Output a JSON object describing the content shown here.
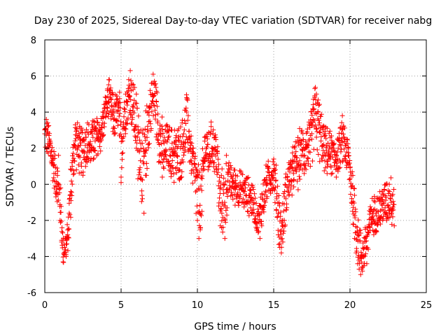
{
  "chart_data": {
    "type": "scatter",
    "title": "Day 230 of 2025, Sidereal Day-to-day VTEC variation (SDTVAR) for receiver nabg",
    "xlabel": "GPS time / hours",
    "ylabel": "SDTVAR / TECUs",
    "xlim": [
      0,
      25
    ],
    "ylim": [
      -6,
      8
    ],
    "xticks": [
      0,
      5,
      10,
      15,
      20,
      25
    ],
    "yticks": [
      -6,
      -4,
      -2,
      0,
      2,
      4,
      6,
      8
    ],
    "grid": true,
    "marker": "+",
    "color": "#ff0000",
    "series": [
      {
        "name": "SDTVAR",
        "points": [
          [
            0.0,
            2.8
          ],
          [
            0.1,
            3.6
          ],
          [
            0.2,
            3.2
          ],
          [
            0.3,
            2.5
          ],
          [
            0.4,
            1.8
          ],
          [
            0.5,
            1.2
          ],
          [
            0.6,
            0.6
          ],
          [
            0.7,
            -0.5
          ],
          [
            0.8,
            0.9
          ],
          [
            0.9,
            1.6
          ],
          [
            1.0,
            -2.0
          ],
          [
            1.1,
            -3.2
          ],
          [
            1.2,
            -4.3
          ],
          [
            1.3,
            -3.5
          ],
          [
            1.4,
            -4.0
          ],
          [
            1.5,
            -2.8
          ],
          [
            1.6,
            -1.6
          ],
          [
            1.7,
            -0.4
          ],
          [
            1.8,
            1.0
          ],
          [
            1.9,
            2.2
          ],
          [
            2.0,
            3.3
          ],
          [
            2.1,
            3.0
          ],
          [
            2.2,
            2.1
          ],
          [
            2.3,
            1.5
          ],
          [
            2.4,
            1.0
          ],
          [
            2.5,
            0.5
          ],
          [
            2.6,
            1.8
          ],
          [
            2.7,
            2.6
          ],
          [
            2.8,
            3.4
          ],
          [
            2.9,
            2.2
          ],
          [
            3.0,
            1.3
          ],
          [
            3.1,
            2.8
          ],
          [
            3.2,
            3.5
          ],
          [
            3.3,
            2.4
          ],
          [
            3.4,
            1.6
          ],
          [
            3.5,
            2.6
          ],
          [
            3.6,
            3.0
          ],
          [
            3.7,
            2.5
          ],
          [
            3.8,
            3.4
          ],
          [
            3.9,
            4.2
          ],
          [
            4.0,
            4.6
          ],
          [
            4.1,
            5.2
          ],
          [
            4.2,
            5.8
          ],
          [
            4.3,
            5.0
          ],
          [
            4.4,
            4.3
          ],
          [
            4.5,
            3.6
          ],
          [
            4.6,
            2.8
          ],
          [
            4.7,
            3.5
          ],
          [
            4.8,
            4.5
          ],
          [
            4.9,
            5.1
          ],
          [
            5.0,
            0.1
          ],
          [
            5.1,
            2.4
          ],
          [
            5.2,
            4.2
          ],
          [
            5.3,
            5.0
          ],
          [
            5.4,
            4.6
          ],
          [
            5.5,
            5.8
          ],
          [
            5.6,
            6.3
          ],
          [
            5.7,
            5.5
          ],
          [
            5.8,
            4.4
          ],
          [
            5.9,
            3.2
          ],
          [
            6.0,
            2.0
          ],
          [
            6.1,
            0.3
          ],
          [
            6.2,
            1.8
          ],
          [
            6.3,
            3.0
          ],
          [
            6.4,
            -0.8
          ],
          [
            6.5,
            -1.6
          ],
          [
            6.6,
            0.5
          ],
          [
            6.7,
            2.6
          ],
          [
            6.8,
            4.0
          ],
          [
            6.9,
            5.2
          ],
          [
            7.0,
            5.6
          ],
          [
            7.1,
            6.1
          ],
          [
            7.2,
            5.5
          ],
          [
            7.3,
            4.6
          ],
          [
            7.4,
            3.5
          ],
          [
            7.5,
            2.2
          ],
          [
            7.6,
            1.2
          ],
          [
            7.7,
            0.4
          ],
          [
            7.8,
            1.4
          ],
          [
            7.9,
            2.4
          ],
          [
            8.0,
            3.3
          ],
          [
            8.1,
            2.6
          ],
          [
            8.2,
            1.6
          ],
          [
            8.3,
            0.6
          ],
          [
            8.4,
            1.8
          ],
          [
            8.5,
            3.0
          ],
          [
            8.6,
            2.4
          ],
          [
            8.7,
            1.2
          ],
          [
            8.8,
            0.3
          ],
          [
            8.9,
            2.0
          ],
          [
            9.0,
            3.4
          ],
          [
            9.1,
            2.8
          ],
          [
            9.2,
            1.9
          ],
          [
            9.3,
            4.8
          ],
          [
            9.4,
            3.8
          ],
          [
            9.5,
            2.5
          ],
          [
            9.6,
            1.3
          ],
          [
            9.7,
            2.0
          ],
          [
            9.8,
            1.1
          ],
          [
            9.9,
            0.4
          ],
          [
            10.0,
            -2.0
          ],
          [
            10.1,
            -3.0
          ],
          [
            10.2,
            -2.4
          ],
          [
            10.3,
            -1.5
          ],
          [
            10.5,
            2.6
          ],
          [
            10.6,
            1.6
          ],
          [
            10.7,
            0.8
          ],
          [
            10.8,
            1.7
          ],
          [
            10.9,
            3.2
          ],
          [
            11.0,
            2.0
          ],
          [
            11.1,
            1.2
          ],
          [
            11.2,
            2.6
          ],
          [
            11.3,
            1.8
          ],
          [
            11.4,
            -1.2
          ],
          [
            11.5,
            -2.3
          ],
          [
            11.6,
            -1.6
          ],
          [
            11.7,
            -0.3
          ],
          [
            11.8,
            -3.0
          ],
          [
            11.9,
            1.6
          ],
          [
            12.0,
            0.2
          ],
          [
            12.5,
            0.5
          ],
          [
            13.0,
            -1.0
          ],
          [
            13.1,
            0.0
          ],
          [
            13.5,
            -0.5
          ],
          [
            13.6,
            -1.6
          ],
          [
            13.8,
            -1.9
          ],
          [
            14.0,
            -2.6
          ],
          [
            14.1,
            -3.0
          ],
          [
            14.2,
            -2.2
          ],
          [
            14.3,
            -1.4
          ],
          [
            14.4,
            -0.6
          ],
          [
            14.5,
            0.2
          ],
          [
            14.6,
            1.0
          ],
          [
            14.7,
            0.5
          ],
          [
            14.8,
            -0.5
          ],
          [
            14.9,
            0.5
          ],
          [
            15.0,
            1.4
          ],
          [
            15.1,
            0.6
          ],
          [
            15.2,
            -0.8
          ],
          [
            15.3,
            -2.8
          ],
          [
            15.4,
            -3.5
          ],
          [
            15.5,
            -3.8
          ],
          [
            15.6,
            -3.2
          ],
          [
            15.7,
            -2.0
          ],
          [
            15.8,
            -0.8
          ],
          [
            15.9,
            0.4
          ],
          [
            16.0,
            1.2
          ],
          [
            16.1,
            0.2
          ],
          [
            16.2,
            -0.6
          ],
          [
            16.3,
            0.6
          ],
          [
            16.4,
            1.6
          ],
          [
            16.5,
            0.9
          ],
          [
            16.6,
            -0.3
          ],
          [
            16.7,
            1.3
          ],
          [
            16.8,
            2.4
          ],
          [
            16.9,
            1.6
          ],
          [
            17.0,
            0.6
          ],
          [
            17.1,
            2.0
          ],
          [
            17.2,
            2.9
          ],
          [
            17.3,
            1.8
          ],
          [
            17.4,
            1.0
          ],
          [
            17.5,
            2.5
          ],
          [
            17.6,
            3.6
          ],
          [
            17.7,
            5.3
          ],
          [
            17.8,
            5.0
          ],
          [
            17.9,
            4.0
          ],
          [
            18.0,
            3.4
          ],
          [
            18.1,
            2.4
          ],
          [
            18.2,
            1.6
          ],
          [
            18.3,
            2.8
          ],
          [
            18.4,
            1.6
          ],
          [
            18.5,
            0.6
          ],
          [
            18.6,
            1.8
          ],
          [
            18.7,
            2.6
          ],
          [
            18.8,
            1.8
          ],
          [
            18.9,
            2.2
          ],
          [
            19.0,
            1.2
          ],
          [
            19.1,
            0.4
          ],
          [
            19.2,
            1.4
          ],
          [
            19.3,
            2.4
          ],
          [
            19.4,
            1.8
          ],
          [
            19.5,
            3.8
          ],
          [
            19.6,
            2.6
          ],
          [
            19.7,
            1.6
          ],
          [
            19.8,
            2.5
          ],
          [
            19.9,
            2.0
          ],
          [
            20.0,
            0.3
          ],
          [
            20.1,
            -1.0
          ],
          [
            20.2,
            -2.2
          ],
          [
            20.3,
            -3.0
          ],
          [
            20.4,
            -3.8
          ],
          [
            20.5,
            -4.4
          ],
          [
            20.6,
            -4.7
          ],
          [
            20.7,
            -5.0
          ],
          [
            20.8,
            -4.6
          ],
          [
            20.9,
            -4.0
          ],
          [
            21.0,
            -3.0
          ],
          [
            21.1,
            -4.4
          ],
          [
            21.2,
            -3.6
          ],
          [
            21.3,
            -2.4
          ],
          [
            21.4,
            -1.4
          ],
          [
            21.5,
            -2.0
          ],
          [
            21.6,
            -2.6
          ],
          [
            21.7,
            -1.6
          ],
          [
            21.8,
            -0.8
          ],
          [
            21.9,
            -1.8
          ],
          [
            22.0,
            -2.2
          ],
          [
            22.1,
            -1.4
          ],
          [
            22.2,
            -0.6
          ],
          [
            22.3,
            -1.3
          ],
          [
            22.4,
            -2.0
          ],
          [
            22.5,
            -1.2
          ],
          [
            22.6,
            -0.4
          ],
          [
            22.7,
            -1.0
          ],
          [
            22.8,
            -1.8
          ],
          [
            22.9,
            -2.3
          ]
        ],
        "envelope": [
          [
            0.0,
            3.8,
            1.8
          ],
          [
            0.3,
            3.6,
            0.8
          ],
          [
            0.7,
            1.8,
            -0.8
          ],
          [
            1.0,
            0.8,
            -2.4
          ],
          [
            1.2,
            -2.6,
            -4.6
          ],
          [
            1.5,
            -2.0,
            -4.2
          ],
          [
            1.7,
            1.6,
            -2.2
          ],
          [
            2.0,
            4.0,
            0.8
          ],
          [
            2.3,
            3.4,
            0.2
          ],
          [
            2.6,
            3.8,
            0.6
          ],
          [
            3.0,
            3.6,
            0.8
          ],
          [
            3.3,
            4.0,
            1.0
          ],
          [
            3.7,
            4.2,
            1.6
          ],
          [
            4.0,
            5.2,
            3.2
          ],
          [
            4.2,
            5.9,
            3.4
          ],
          [
            4.5,
            5.2,
            2.2
          ],
          [
            4.8,
            5.4,
            2.6
          ],
          [
            5.0,
            4.8,
            -0.2
          ],
          [
            5.3,
            5.6,
            2.8
          ],
          [
            5.6,
            6.6,
            3.4
          ],
          [
            5.9,
            6.0,
            1.6
          ],
          [
            6.2,
            4.4,
            0.0
          ],
          [
            6.4,
            3.0,
            -2.0
          ],
          [
            6.7,
            5.0,
            0.4
          ],
          [
            7.0,
            6.0,
            3.0
          ],
          [
            7.2,
            6.5,
            3.2
          ],
          [
            7.5,
            5.0,
            0.8
          ],
          [
            7.8,
            3.2,
            -0.2
          ],
          [
            8.0,
            3.6,
            0.8
          ],
          [
            8.3,
            3.4,
            0.0
          ],
          [
            8.6,
            3.4,
            -0.4
          ],
          [
            9.0,
            3.8,
            0.2
          ],
          [
            9.3,
            5.4,
            1.6
          ],
          [
            9.6,
            3.0,
            0.2
          ],
          [
            10.0,
            2.0,
            -3.2
          ],
          [
            10.2,
            0.8,
            -3.2
          ],
          [
            10.5,
            3.6,
            0.6
          ],
          [
            10.8,
            3.4,
            0.2
          ],
          [
            11.0,
            3.8,
            0.8
          ],
          [
            11.3,
            3.0,
            -0.2
          ],
          [
            11.5,
            0.6,
            -2.6
          ],
          [
            11.8,
            1.8,
            -3.6
          ],
          [
            12.0,
            1.4,
            -1.0
          ],
          [
            13.0,
            0.8,
            -1.6
          ],
          [
            13.6,
            0.4,
            -2.0
          ],
          [
            14.0,
            -1.2,
            -3.0
          ],
          [
            14.3,
            0.8,
            -2.4
          ],
          [
            14.6,
            1.4,
            -0.8
          ],
          [
            15.0,
            1.8,
            -0.6
          ],
          [
            15.3,
            0.8,
            -3.6
          ],
          [
            15.5,
            -1.6,
            -3.9
          ],
          [
            15.8,
            1.2,
            -2.2
          ],
          [
            16.1,
            1.8,
            -0.8
          ],
          [
            16.4,
            2.6,
            -0.4
          ],
          [
            16.8,
            3.4,
            0.2
          ],
          [
            17.1,
            3.6,
            0.4
          ],
          [
            17.4,
            4.0,
            0.6
          ],
          [
            17.7,
            6.0,
            1.6
          ],
          [
            18.0,
            5.0,
            1.0
          ],
          [
            18.3,
            3.4,
            0.6
          ],
          [
            18.6,
            3.2,
            0.4
          ],
          [
            19.0,
            2.8,
            0.2
          ],
          [
            19.3,
            3.2,
            0.6
          ],
          [
            19.6,
            3.9,
            1.0
          ],
          [
            19.9,
            2.6,
            0.0
          ],
          [
            20.1,
            1.8,
            -1.6
          ],
          [
            20.3,
            0.4,
            -3.4
          ],
          [
            20.6,
            -1.8,
            -4.9
          ],
          [
            20.8,
            -2.8,
            -5.2
          ],
          [
            21.1,
            -1.6,
            -4.6
          ],
          [
            21.4,
            -0.6,
            -3.0
          ],
          [
            21.7,
            -0.4,
            -2.8
          ],
          [
            22.0,
            0.0,
            -2.6
          ],
          [
            22.3,
            0.4,
            -2.4
          ],
          [
            22.6,
            0.8,
            -2.2
          ],
          [
            22.9,
            0.8,
            -2.7
          ]
        ]
      }
    ]
  }
}
